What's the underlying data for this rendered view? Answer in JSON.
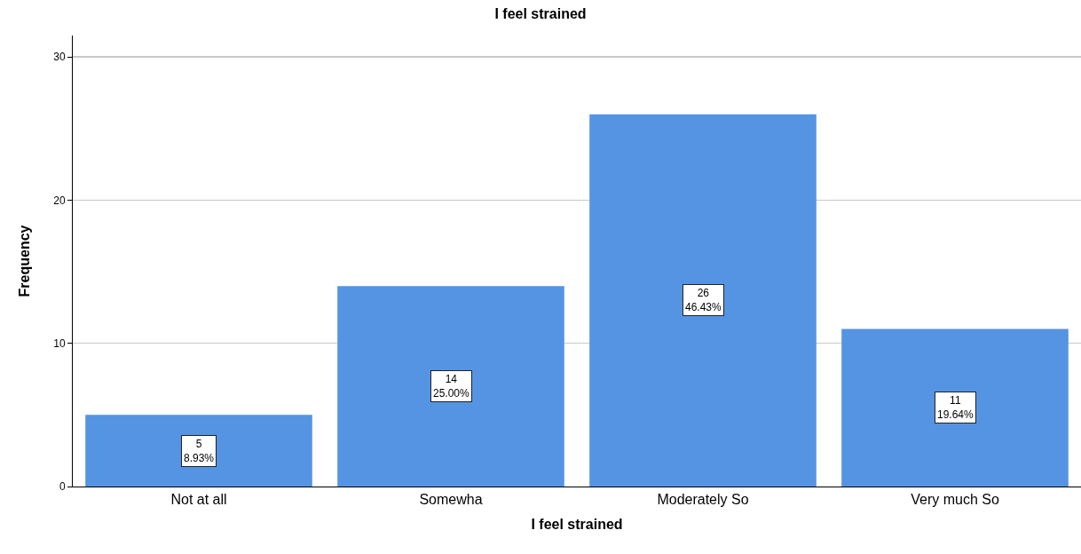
{
  "chart_data": {
    "type": "bar",
    "title": "I feel strained",
    "xlabel": "I feel strained",
    "ylabel": "Frequency",
    "categories": [
      "Not at all",
      "Somewha",
      "Moderately So",
      "Very much So"
    ],
    "values": [
      5,
      14,
      26,
      11
    ],
    "value_labels": [
      "5\n8.93%",
      "14\n25.00%",
      "26\n46.43%",
      "11\n19.64%"
    ],
    "color": "#5594e3",
    "ylim": [
      0,
      31.5
    ],
    "yticks": [
      0,
      10,
      20,
      30
    ],
    "grid": "y"
  }
}
